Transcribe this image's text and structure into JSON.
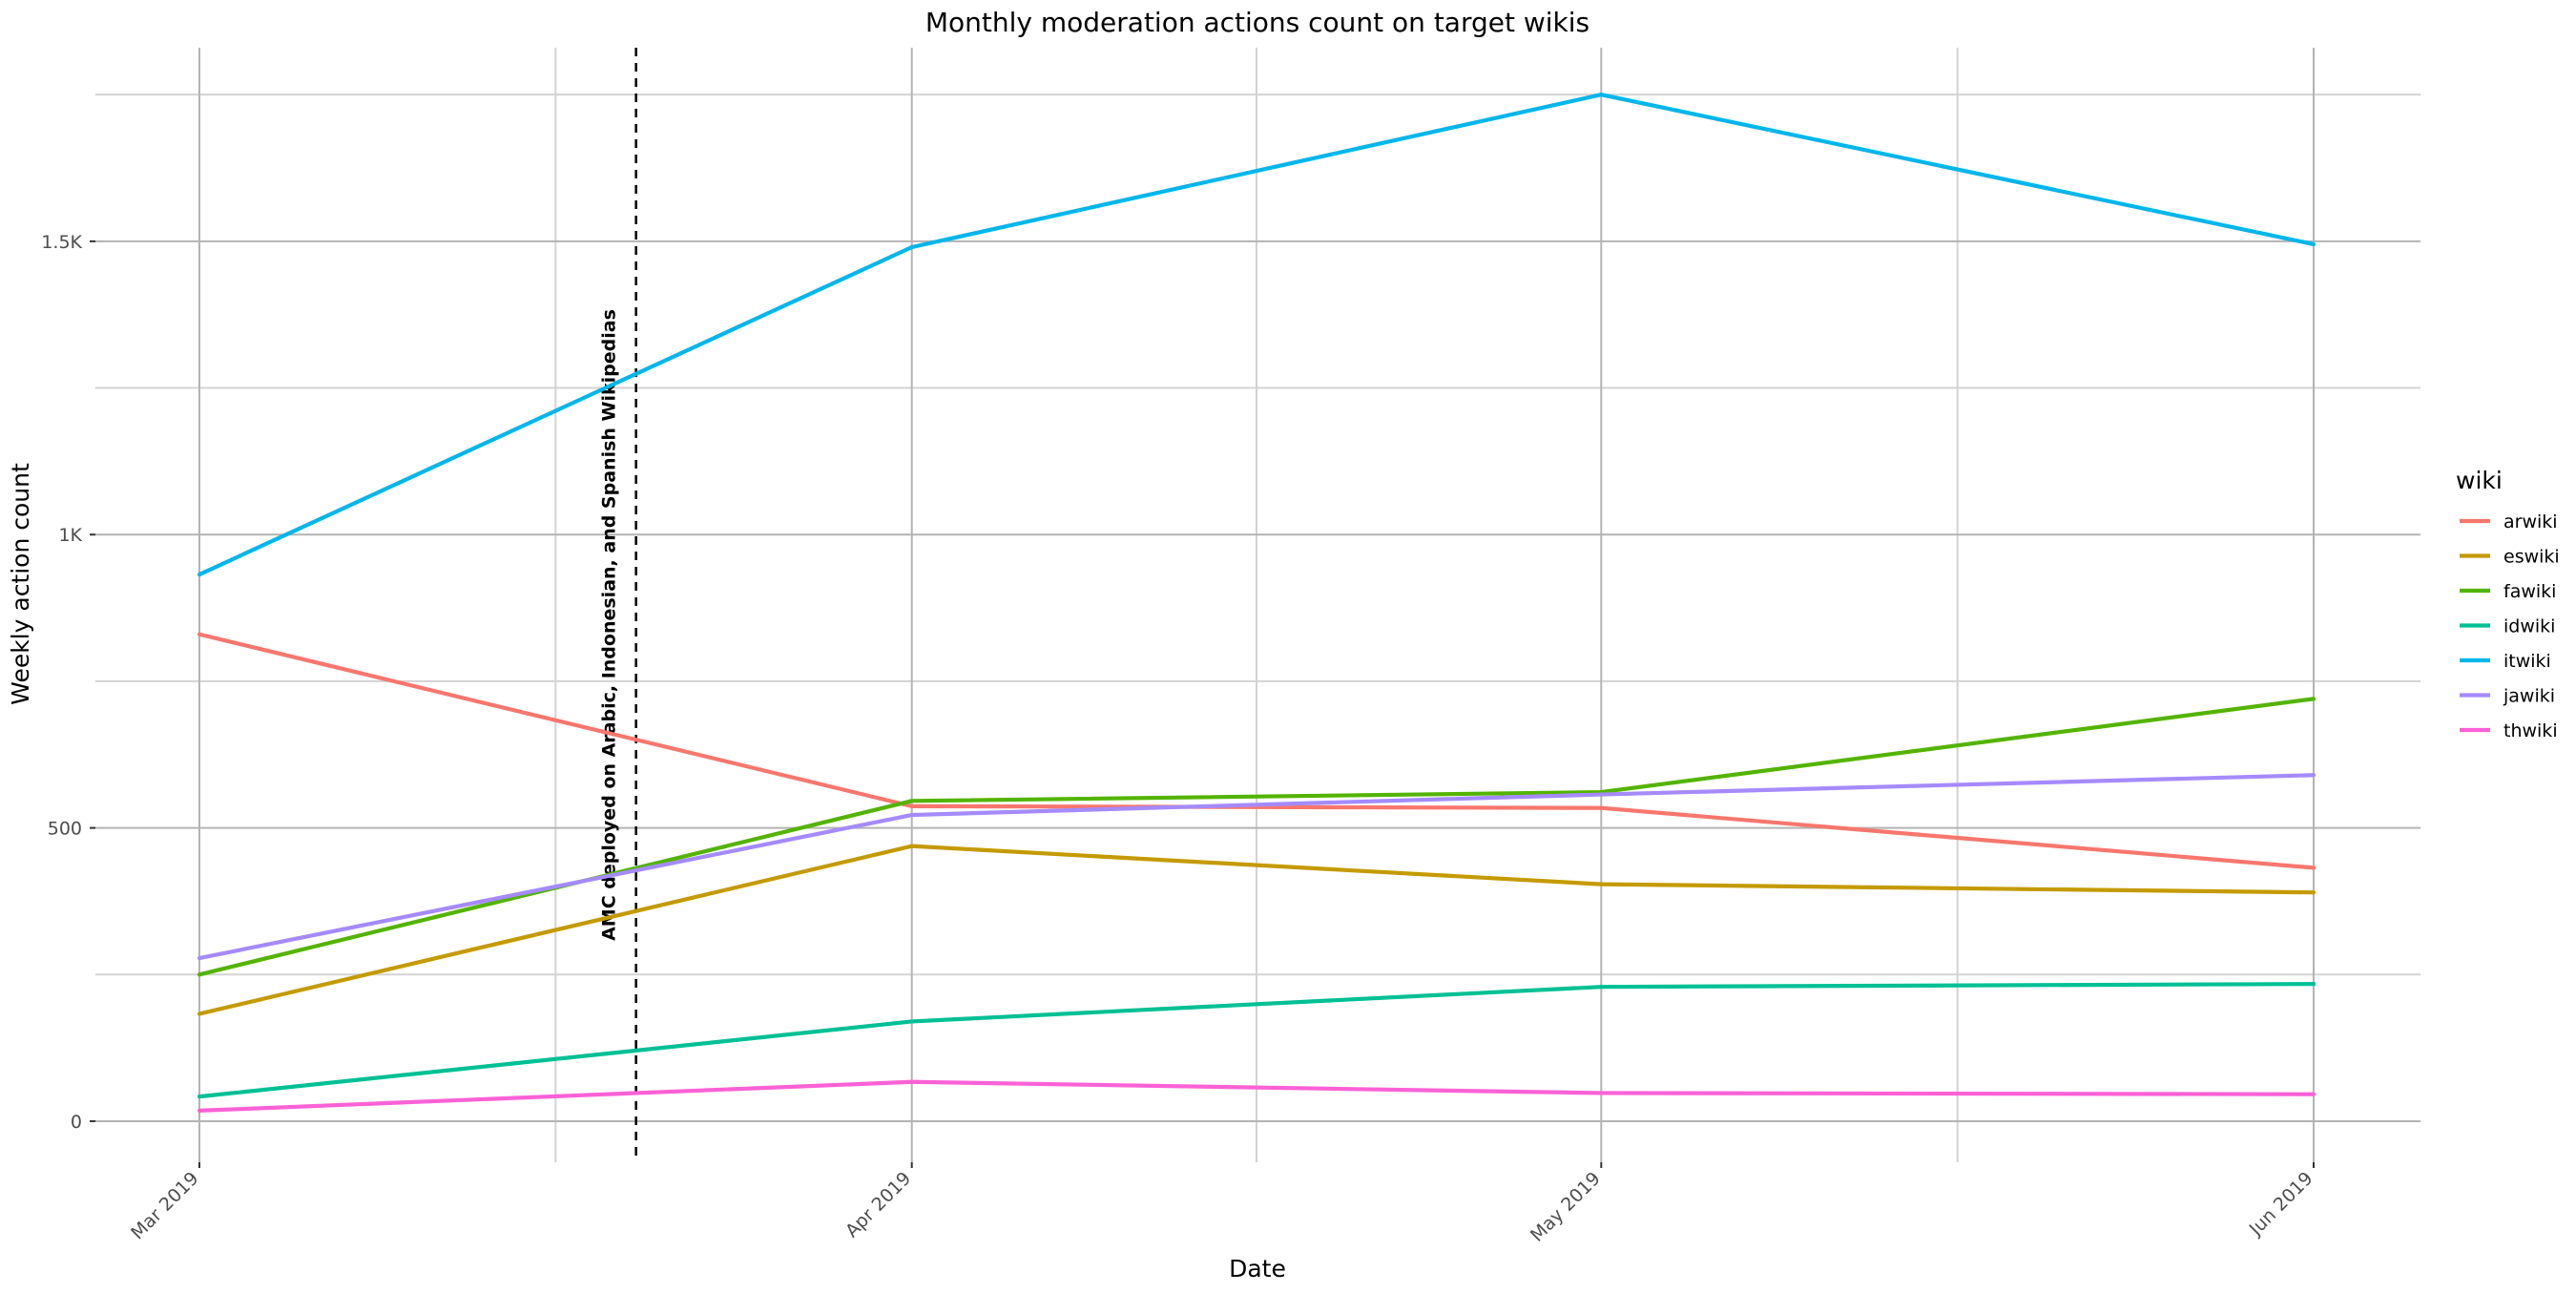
{
  "chart_data": {
    "type": "line",
    "title": "Monthly moderation actions count on target wikis",
    "xlabel": "Date",
    "ylabel": "Weekly action count",
    "x": [
      "2019-03-01",
      "2019-04-01",
      "2019-05-01",
      "2019-06-01"
    ],
    "x_tick_labels": [
      "Mar 2019",
      "Apr 2019",
      "May 2019",
      "Jun 2019"
    ],
    "ylim": [
      -70,
      1830
    ],
    "y_ticks": [
      0,
      500,
      1000,
      1500
    ],
    "y_tick_labels": [
      "0",
      "500",
      "1K",
      "1.5K"
    ],
    "grid": true,
    "legend": {
      "title": "wiki",
      "position": "right"
    },
    "series": [
      {
        "name": "arwiki",
        "color": "#F8766D",
        "values": [
          830,
          537,
          534,
          432
        ]
      },
      {
        "name": "eswiki",
        "color": "#C49A00",
        "values": [
          183,
          469,
          404,
          390
        ]
      },
      {
        "name": "fawiki",
        "color": "#53B400",
        "values": [
          250,
          546,
          561,
          720
        ]
      },
      {
        "name": "idwiki",
        "color": "#00C094",
        "values": [
          42,
          170,
          229,
          234
        ]
      },
      {
        "name": "itwiki",
        "color": "#00B6EB",
        "values": [
          932,
          1490,
          1750,
          1495
        ]
      },
      {
        "name": "jawiki",
        "color": "#A58AFF",
        "values": [
          278,
          522,
          557,
          590
        ]
      },
      {
        "name": "thwiki",
        "color": "#FB61D7",
        "values": [
          18,
          67,
          48,
          46
        ]
      }
    ],
    "annotations": [
      {
        "x": "2019-03-20",
        "style": "dashed vertical line",
        "text": "AMC deployed on Arabic, Indonesian, and Spanish Wikipedias"
      }
    ]
  }
}
